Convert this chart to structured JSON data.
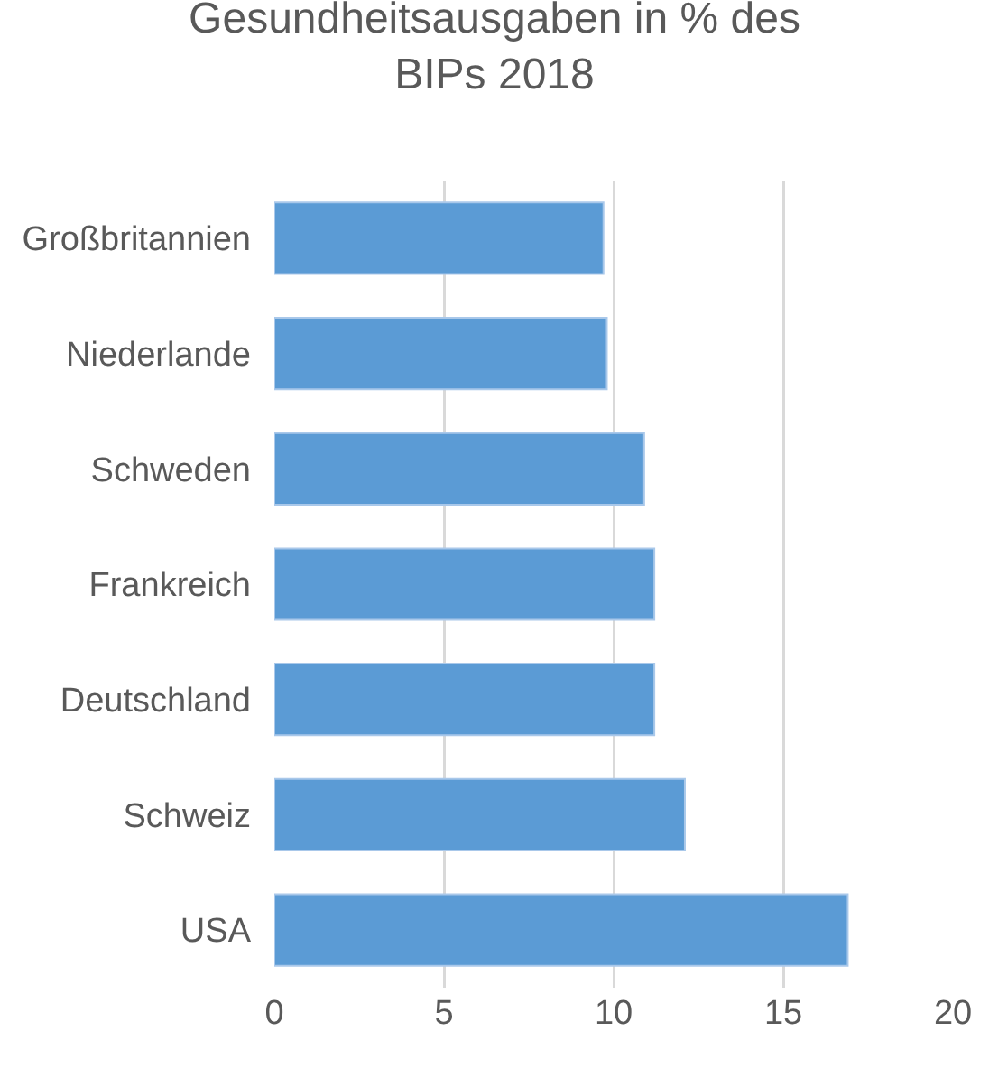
{
  "chart_data": {
    "type": "bar",
    "orientation": "horizontal",
    "title": "Gesundheitsausgaben in % des BIPs 2018",
    "categories": [
      "Großbritannien",
      "Niederlande",
      "Schweden",
      "Frankreich",
      "Deutschland",
      "Schweiz",
      "USA"
    ],
    "values": [
      9.7,
      9.8,
      10.9,
      11.2,
      11.2,
      12.1,
      16.9
    ],
    "color": "#5b9bd5",
    "xlim": [
      0,
      20
    ],
    "xticks": [
      0,
      5,
      10,
      15,
      20
    ],
    "grid": "x",
    "legend": false
  }
}
